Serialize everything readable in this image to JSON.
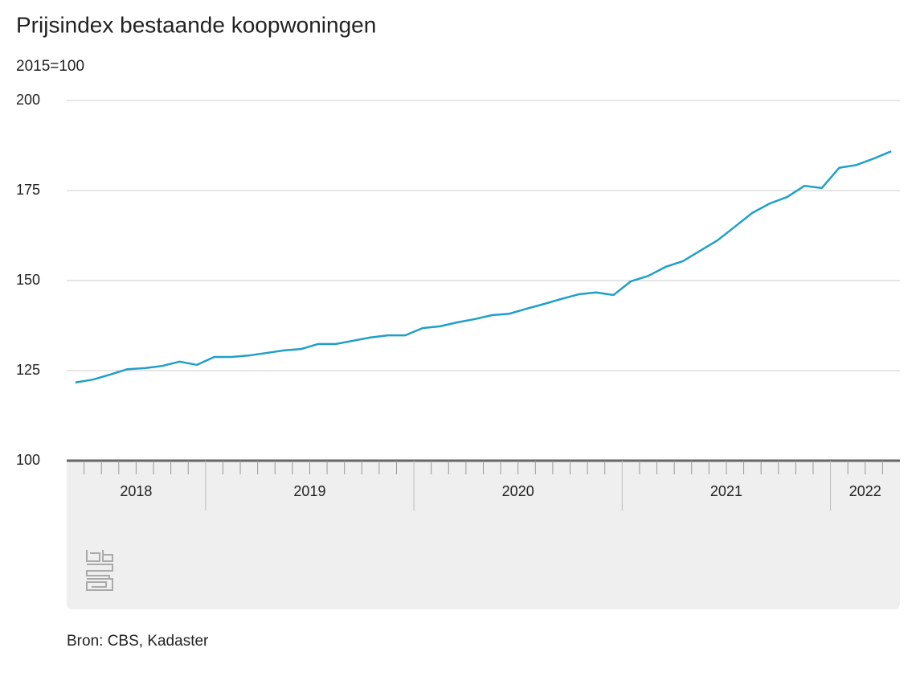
{
  "chart_data": {
    "type": "line",
    "title": "Prijsindex bestaande koopwoningen",
    "subtitle": "2015=100",
    "source": "Bron: CBS, Kadaster",
    "categories": [
      "2018",
      "2018",
      "2018",
      "2018",
      "2018",
      "2018",
      "2018",
      "2018",
      "2019",
      "2019",
      "2019",
      "2019",
      "2019",
      "2019",
      "2019",
      "2019",
      "2019",
      "2019",
      "2019",
      "2019",
      "2020",
      "2020",
      "2020",
      "2020",
      "2020",
      "2020",
      "2020",
      "2020",
      "2020",
      "2020",
      "2020",
      "2020",
      "2021",
      "2021",
      "2021",
      "2021",
      "2021",
      "2021",
      "2021",
      "2021",
      "2021",
      "2021",
      "2021",
      "2021",
      "2022",
      "2022",
      "2022",
      "2022"
    ],
    "series": [
      {
        "name": "Prijsindex",
        "color": "#1f9fc8",
        "values": [
          121.7,
          122.5,
          123.9,
          125.4,
          125.7,
          126.3,
          127.5,
          126.6,
          128.8,
          128.8,
          129.2,
          129.9,
          130.6,
          131.0,
          132.4,
          132.4,
          133.3,
          134.2,
          134.8,
          134.8,
          136.8,
          137.3,
          138.4,
          139.3,
          140.4,
          140.8,
          142.2,
          143.5,
          144.9,
          146.2,
          146.7,
          146.0,
          149.8,
          151.3,
          153.8,
          155.4,
          158.3,
          161.2,
          165.0,
          168.8,
          171.4,
          173.2,
          176.3,
          175.7,
          181.3,
          182.1,
          183.9,
          185.9
        ]
      }
    ],
    "ylim": [
      100,
      200
    ],
    "yticks": [
      100,
      125,
      150,
      175,
      200
    ],
    "grid": true
  }
}
